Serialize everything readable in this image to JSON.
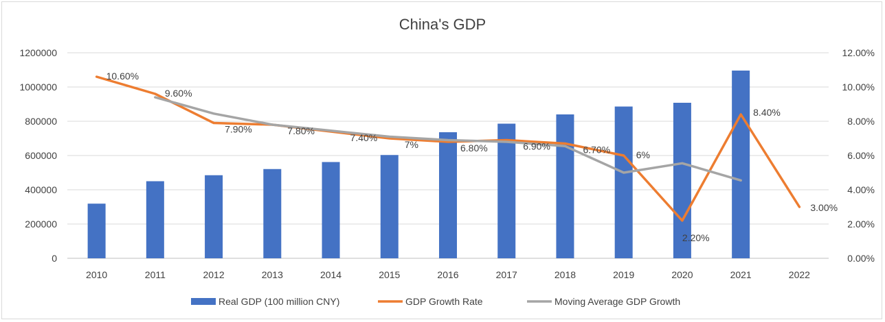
{
  "chart_data": {
    "type": "bar-line-combo",
    "title": "China's GDP",
    "categories": [
      "2010",
      "2011",
      "2012",
      "2013",
      "2014",
      "2015",
      "2016",
      "2017",
      "2018",
      "2019",
      "2020",
      "2021",
      "2022"
    ],
    "y_left": {
      "min": 0,
      "max": 1200000,
      "step": 200000,
      "tick_labels": [
        "0",
        "200000",
        "400000",
        "600000",
        "800000",
        "1000000",
        "1200000"
      ]
    },
    "y_right": {
      "min": 0,
      "max": 12,
      "step": 2,
      "tick_labels": [
        "0.00%",
        "2.00%",
        "4.00%",
        "6.00%",
        "8.00%",
        "10.00%",
        "12.00%"
      ]
    },
    "grid": true,
    "legend_position": "bottom",
    "series": [
      {
        "name": "Real GDP (100 million CNY)",
        "type": "bar",
        "axis": "left",
        "color": "#4472C4",
        "values": [
          319000,
          450000,
          485000,
          521000,
          562000,
          603000,
          736000,
          786000,
          840000,
          886000,
          908000,
          1096000,
          null
        ]
      },
      {
        "name": "GDP Growth Rate",
        "type": "line",
        "axis": "right",
        "color": "#ED7D31",
        "values": [
          10.6,
          9.6,
          7.9,
          7.8,
          7.4,
          7.0,
          6.8,
          6.9,
          6.7,
          6.0,
          2.2,
          8.4,
          3.0
        ],
        "labels": [
          "10.60%",
          "9.60%",
          "7.90%",
          "7.80%",
          "7.40%",
          "7%",
          "6.80%",
          "6.90%",
          "6.70%",
          "6%",
          "2.20%",
          "8.40%",
          "3.00%"
        ]
      },
      {
        "name": "Moving Average GDP Growth",
        "type": "line",
        "axis": "right",
        "color": "#A5A5A5",
        "values": [
          null,
          9.4,
          8.45,
          7.8,
          7.45,
          7.1,
          6.9,
          6.8,
          6.55,
          5.0,
          5.55,
          4.55,
          null
        ]
      }
    ]
  }
}
